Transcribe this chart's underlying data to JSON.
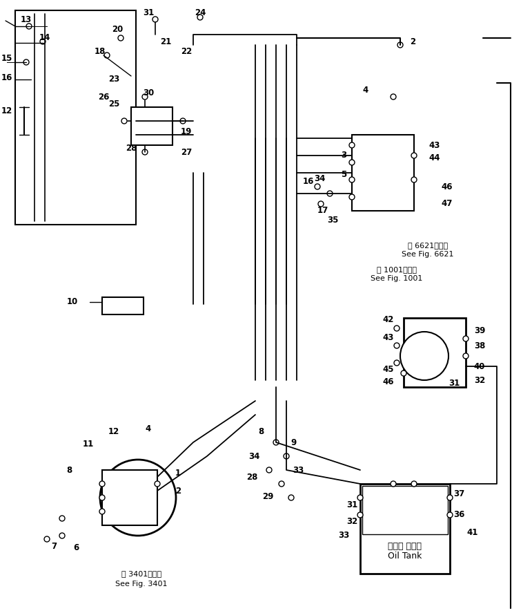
{
  "bg_color": "#ffffff",
  "line_color": "#000000",
  "title": "",
  "fig_width": 7.71,
  "fig_height": 8.84,
  "labels": {
    "see_fig_3401_jp": "第 3401図参照",
    "see_fig_3401_en": "See Fig. 3401",
    "see_fig_6621_jp": "第 6621図参照",
    "see_fig_6621_en": "See Fig. 6621",
    "see_fig_1001_jp": "第 1001図参照",
    "see_fig_1001_en": "See Fig. 1001",
    "oil_tank_jp": "オイル タンク",
    "oil_tank_en": "Oil Tank"
  }
}
